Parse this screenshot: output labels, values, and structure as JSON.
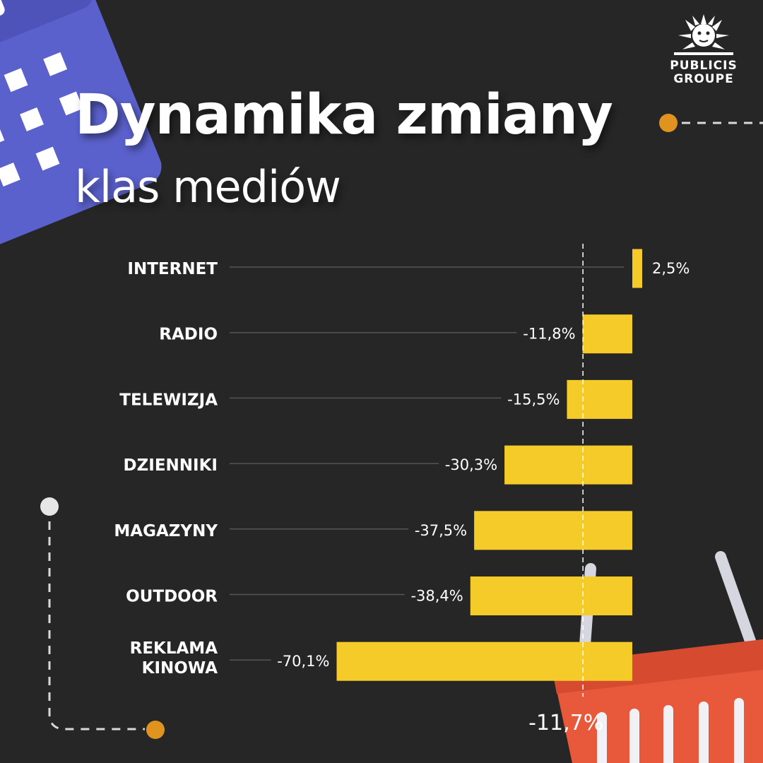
{
  "header": {
    "title": "Dynamika zmiany",
    "subtitle": "klas mediów"
  },
  "logo": {
    "line1": "PUBLICIS",
    "line2": "GROUPE"
  },
  "colors": {
    "background": "#262626",
    "bar": "#f5cb29",
    "calendar": "#5b61cc",
    "basket": "#e8593c",
    "dot_orange": "#e0941f",
    "dot_white": "#e6e6e6",
    "text": "#ffffff"
  },
  "chart_data": {
    "type": "bar",
    "orientation": "horizontal",
    "categories": [
      "INTERNET",
      "RADIO",
      "TELEWIZJA",
      "DZIENNIKI",
      "MAGAZYNY",
      "OUTDOOR",
      "REKLAMA KINOWA"
    ],
    "values": [
      2.5,
      -11.8,
      -15.5,
      -30.3,
      -37.5,
      -38.4,
      -70.1
    ],
    "value_labels": [
      "2,5%",
      "-11,8%",
      "-15,5%",
      "-30,3%",
      "-37,5%",
      "-38,4%",
      "-70,1%"
    ],
    "reference_line": {
      "value": -11.7,
      "label": "-11,7%",
      "style": "dashed"
    },
    "title": "Dynamika zmiany",
    "subtitle": "klas mediów",
    "xlabel": "",
    "ylabel": "",
    "xlim": [
      -70.1,
      2.5
    ],
    "grid": false,
    "legend": "none"
  }
}
